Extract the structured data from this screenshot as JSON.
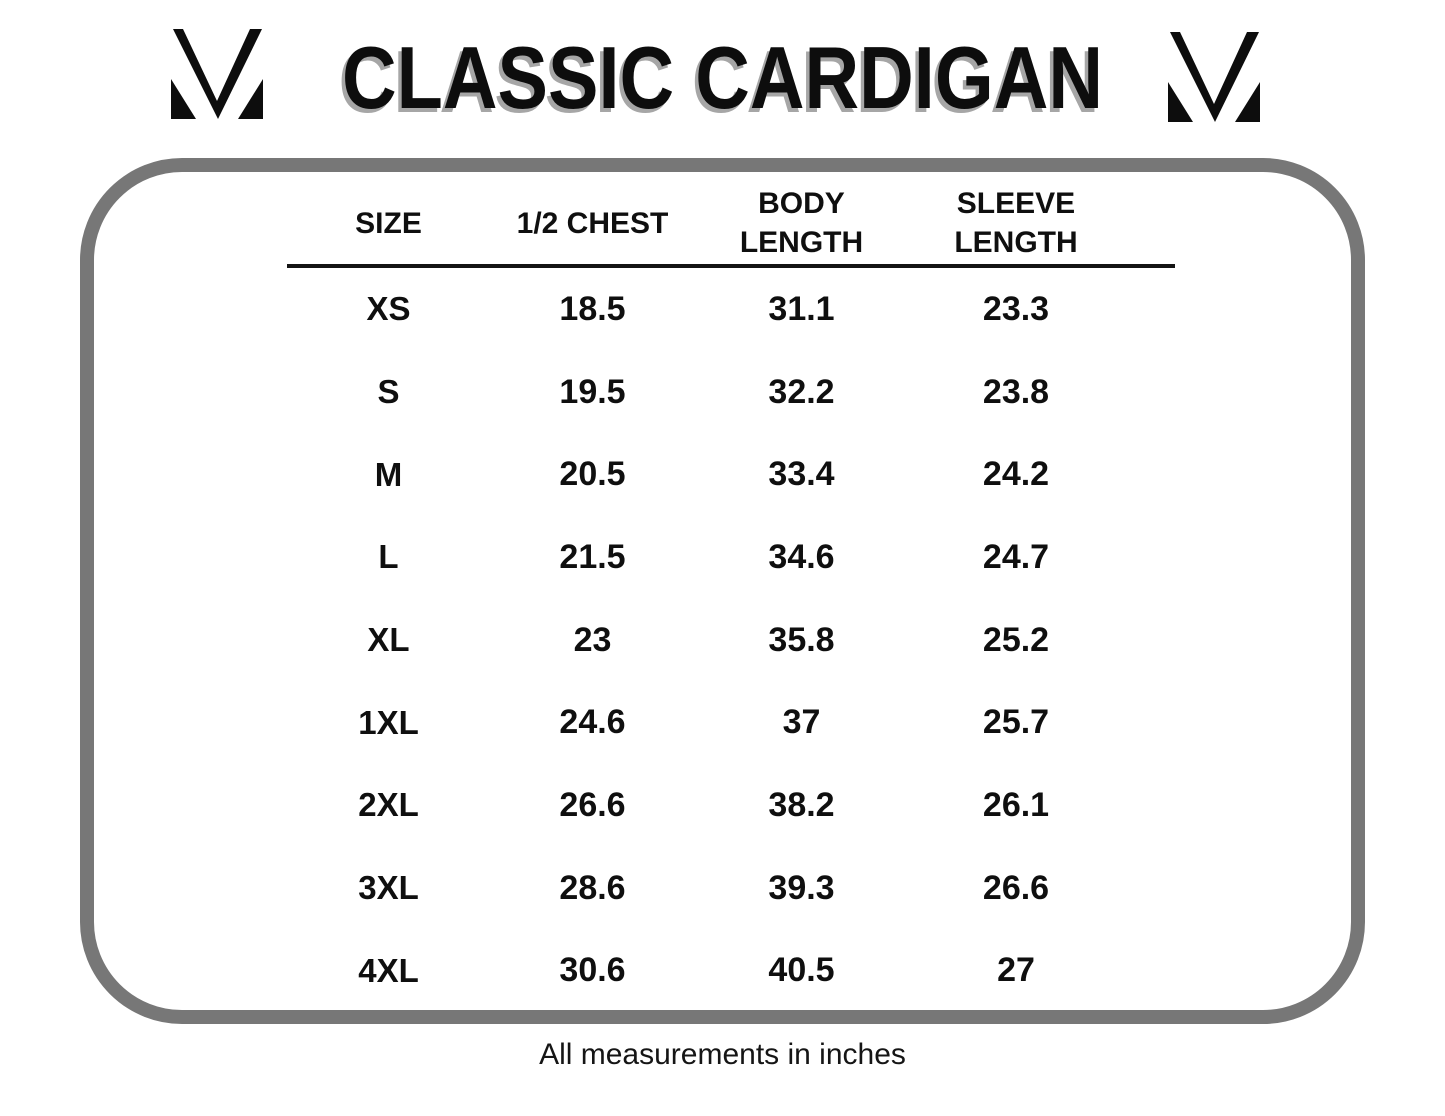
{
  "title": "CLASSIC CARDIGAN",
  "footer": "All measurements in inches",
  "brand": {
    "logo": "m-monogram"
  },
  "colors": {
    "text": "#0f0f0f",
    "title_shadow": "#a6a6a6",
    "frame_border": "#777777",
    "background": "#ffffff"
  },
  "chart_data": {
    "type": "table",
    "title": "CLASSIC CARDIGAN",
    "columns": [
      "SIZE",
      "1/2 CHEST",
      "BODY\nLENGTH",
      "SLEEVE\nLENGTH"
    ],
    "rows": [
      [
        "XS",
        "18.5",
        "31.1",
        "23.3"
      ],
      [
        "S",
        "19.5",
        "32.2",
        "23.8"
      ],
      [
        "M",
        "20.5",
        "33.4",
        "24.2"
      ],
      [
        "L",
        "21.5",
        "34.6",
        "24.7"
      ],
      [
        "XL",
        "23",
        "35.8",
        "25.2"
      ],
      [
        "1XL",
        "24.6",
        "37",
        "25.7"
      ],
      [
        "2XL",
        "26.6",
        "38.2",
        "26.1"
      ],
      [
        "3XL",
        "28.6",
        "39.3",
        "26.6"
      ],
      [
        "4XL",
        "30.6",
        "40.5",
        "27"
      ]
    ],
    "units": "inches",
    "note": "All measurements in inches",
    "layout": {
      "grid": false,
      "header_underline": true,
      "frame": "rounded-gray"
    }
  }
}
